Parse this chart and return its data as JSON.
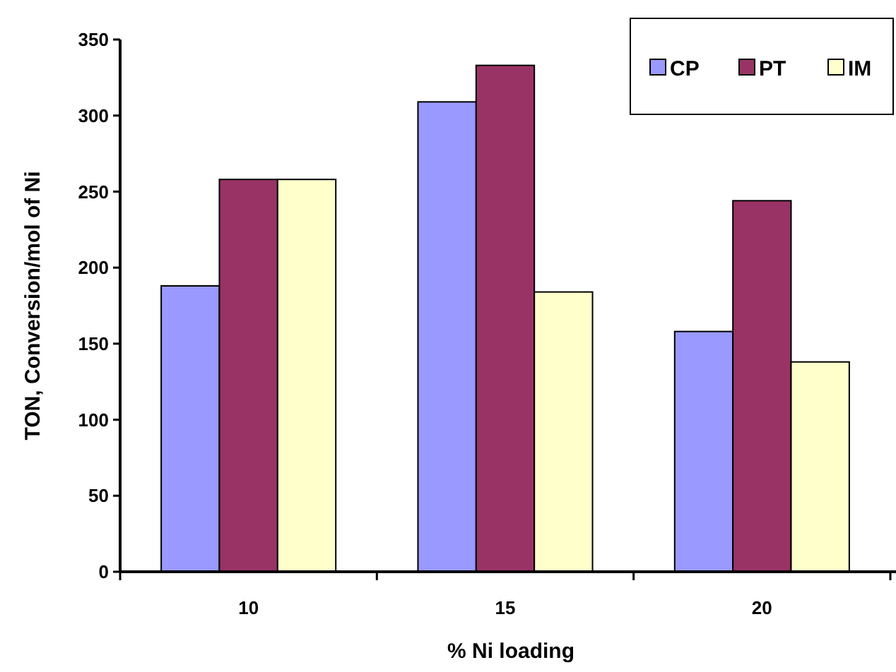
{
  "chart_data": {
    "type": "bar",
    "xlabel": "% Ni loading",
    "ylabel": "TON, Conversion/mol of Ni",
    "categories": [
      "10",
      "15",
      "20"
    ],
    "series": [
      {
        "name": "CP",
        "color": "#9999ff",
        "values": [
          188,
          309,
          158
        ]
      },
      {
        "name": "PT",
        "color": "#993366",
        "values": [
          258,
          333,
          244
        ]
      },
      {
        "name": "IM",
        "color": "#ffffcc",
        "values": [
          258,
          184,
          138
        ]
      }
    ],
    "ylim": [
      0,
      350
    ],
    "yticks": [
      0,
      50,
      100,
      150,
      200,
      250,
      300,
      350
    ],
    "legend": "top right",
    "grid": false
  }
}
